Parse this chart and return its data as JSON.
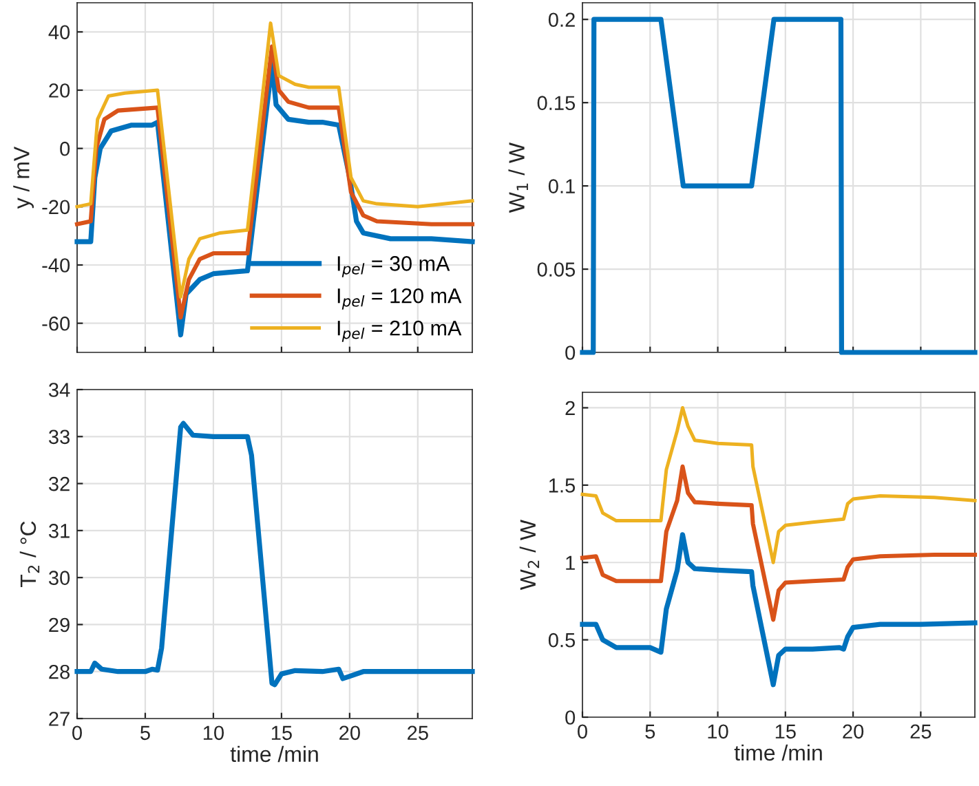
{
  "chart_data": [
    {
      "type": "line",
      "ylabel": "y / mV",
      "xlim": [
        0,
        29
      ],
      "xticks": [
        0,
        5,
        10,
        15,
        20,
        25
      ],
      "ylim": [
        -70,
        50
      ],
      "yticks": [
        -60,
        -40,
        -20,
        0,
        20,
        40
      ],
      "grid": true,
      "legend": "bottom right",
      "tick_labels": "y",
      "series": [
        {
          "name": "I$_{pel}$ = 30 mA",
          "color": "#0072bd",
          "x": [
            0,
            1.0,
            1.3,
            1.7,
            2.5,
            4,
            5.5,
            5.9,
            7.6,
            8.0,
            9,
            10,
            12.5,
            14.3,
            14.6,
            15.5,
            17,
            18,
            19.2,
            20,
            20.5,
            21,
            23,
            26,
            29
          ],
          "values": [
            -32,
            -32,
            -10,
            0,
            6,
            8,
            8,
            9,
            -64,
            -50,
            -45,
            -43,
            -42,
            29,
            15,
            10,
            9,
            9,
            8,
            -10,
            -25,
            -29,
            -31,
            -31,
            -32
          ]
        },
        {
          "name": "I$_{pel}$ = 120 mA",
          "color": "#d95319",
          "x": [
            0,
            1.0,
            1.4,
            2,
            3,
            5.9,
            7.6,
            8.2,
            9,
            10,
            12.5,
            14.3,
            14.8,
            15.5,
            17,
            19.2,
            20.1,
            21,
            22,
            26,
            29
          ],
          "values": [
            -26,
            -25,
            0,
            10,
            13,
            14,
            -58,
            -45,
            -38,
            -36,
            -36,
            35,
            20,
            16,
            14,
            14,
            -15,
            -23,
            -25,
            -26,
            -26
          ]
        },
        {
          "name": "I$_{pel}$ = 210 mA",
          "color": "#edb120",
          "x": [
            0,
            1.0,
            1.5,
            2.3,
            3.5,
            5.9,
            7.6,
            8.2,
            9,
            10.5,
            12.5,
            14.2,
            14.8,
            16,
            17,
            19.2,
            20.1,
            21,
            22,
            25,
            29
          ],
          "values": [
            -20,
            -19,
            10,
            18,
            19,
            20,
            -51,
            -38,
            -31,
            -29,
            -28,
            43,
            25,
            22,
            21,
            21,
            -10,
            -18,
            -19,
            -20,
            -18
          ]
        }
      ]
    },
    {
      "type": "line",
      "ylabel": "W$_{1}$ / W",
      "xlim": [
        0,
        29
      ],
      "xticks": [
        0,
        5,
        10,
        15,
        20,
        25
      ],
      "ylim": [
        0,
        0.21
      ],
      "yticks": [
        0,
        0.05,
        0.1,
        0.15,
        0.2
      ],
      "grid": true,
      "tick_labels": "y",
      "series": [
        {
          "color": "#0072bd",
          "x": [
            0,
            0.8,
            0.85,
            5.8,
            7.45,
            12.5,
            14.15,
            19.1,
            19.15,
            29
          ],
          "values": [
            0,
            0,
            0.2,
            0.2,
            0.1,
            0.1,
            0.2,
            0.2,
            0,
            0
          ]
        }
      ]
    },
    {
      "type": "line",
      "ylabel": "T$_{2}$ / °C",
      "xlabel": "time /min",
      "xlim": [
        0,
        29
      ],
      "xticks": [
        0,
        5,
        10,
        15,
        20,
        25
      ],
      "ylim": [
        27,
        34
      ],
      "yticks": [
        27,
        28,
        29,
        30,
        31,
        32,
        33,
        34
      ],
      "grid": true,
      "series": [
        {
          "color": "#0072bd",
          "x": [
            0,
            1.0,
            1.3,
            1.8,
            3,
            5,
            5.5,
            5.9,
            6.2,
            7.0,
            7.6,
            7.8,
            8.5,
            10,
            12.5,
            12.8,
            14.3,
            14.5,
            15,
            16,
            18,
            19.2,
            19.5,
            20,
            21,
            29
          ],
          "values": [
            28,
            28,
            28.18,
            28.05,
            28,
            28,
            28.05,
            28.03,
            28.5,
            31.2,
            33.2,
            33.28,
            33.03,
            33,
            33,
            32.6,
            27.75,
            27.72,
            27.95,
            28.02,
            28,
            28.05,
            27.85,
            27.9,
            28,
            28
          ]
        }
      ]
    },
    {
      "type": "line",
      "ylabel": "W$_{2}$ / W",
      "xlabel": "time /min",
      "xlim": [
        0,
        29
      ],
      "xticks": [
        0,
        5,
        10,
        15,
        20,
        25
      ],
      "ylim": [
        0,
        2.1
      ],
      "yticks": [
        0,
        0.5,
        1,
        1.5,
        2
      ],
      "grid": true,
      "series": [
        {
          "color": "#0072bd",
          "x": [
            0,
            1,
            1.5,
            2.5,
            5,
            5.8,
            6.2,
            7,
            7.4,
            7.8,
            8.3,
            10,
            12.5,
            12.6,
            14.1,
            14.5,
            15,
            17,
            19,
            19.3,
            19.6,
            20,
            22,
            25,
            29
          ],
          "values": [
            0.6,
            0.6,
            0.5,
            0.45,
            0.45,
            0.42,
            0.7,
            0.95,
            1.18,
            1.0,
            0.96,
            0.95,
            0.94,
            0.85,
            0.21,
            0.4,
            0.44,
            0.44,
            0.45,
            0.44,
            0.52,
            0.58,
            0.6,
            0.6,
            0.61
          ]
        },
        {
          "color": "#d95319",
          "x": [
            0,
            1,
            1.5,
            2.5,
            5.8,
            6.2,
            7,
            7.4,
            7.8,
            8.3,
            10,
            12.5,
            12.6,
            14.1,
            14.5,
            15,
            17,
            19.3,
            19.6,
            20,
            22,
            26,
            29
          ],
          "values": [
            1.03,
            1.04,
            0.92,
            0.88,
            0.88,
            1.2,
            1.4,
            1.62,
            1.45,
            1.39,
            1.38,
            1.37,
            1.25,
            0.63,
            0.82,
            0.87,
            0.88,
            0.89,
            0.97,
            1.02,
            1.04,
            1.05,
            1.05
          ]
        },
        {
          "color": "#edb120",
          "x": [
            0,
            1,
            1.5,
            2.5,
            5.8,
            6.2,
            7,
            7.4,
            7.8,
            8.3,
            10,
            12.5,
            12.6,
            14.1,
            14.5,
            15,
            17,
            19.3,
            19.6,
            20,
            22,
            26,
            29
          ],
          "values": [
            1.44,
            1.43,
            1.32,
            1.27,
            1.27,
            1.6,
            1.85,
            2.0,
            1.88,
            1.79,
            1.77,
            1.76,
            1.62,
            1.0,
            1.2,
            1.24,
            1.26,
            1.28,
            1.38,
            1.41,
            1.43,
            1.42,
            1.4
          ]
        }
      ]
    }
  ]
}
